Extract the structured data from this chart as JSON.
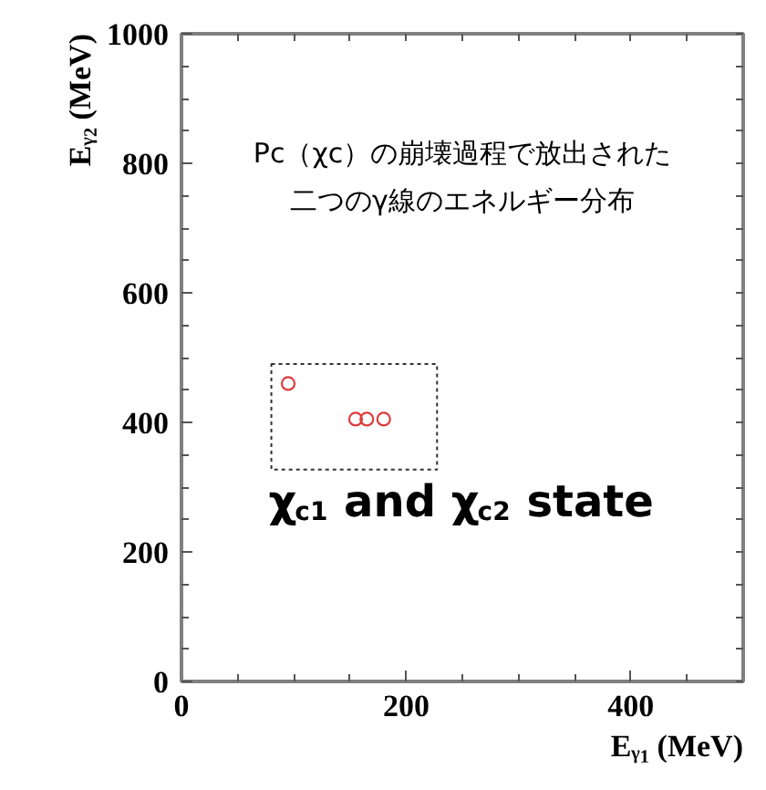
{
  "chart_data": {
    "type": "scatter",
    "xlabel": "Eᵧ₁ (MeV)",
    "ylabel": "Eᵧ₂ (MeV)",
    "annotations": [
      "Pc（χc）の崩壊過程で放出された",
      "二つのγ線のエネルギー分布",
      "χ$_{c1}$ and χ$_{c2}$ state"
    ],
    "x": [
      95,
      155,
      165,
      180
    ],
    "series": [
      {
        "color": "#dd3c3c",
        "values": [
          460,
          405,
          405,
          405
        ]
      }
    ],
    "xlim": [
      0,
      500
    ],
    "ylim": [
      0,
      1000
    ],
    "xticks": [
      0,
      {
        "value": 50,
        "label": null
      },
      {
        "value": 100,
        "label": null
      },
      {
        "value": 150,
        "label": null
      },
      200,
      {
        "value": 250,
        "label": null
      },
      {
        "value": 300,
        "label": null
      },
      {
        "value": 350,
        "label": null
      },
      400,
      {
        "value": 450,
        "label": null
      }
    ],
    "yticks": [
      0,
      {
        "value": 50,
        "label": null
      },
      {
        "value": 100,
        "label": null
      },
      {
        "value": 150,
        "label": null
      },
      200,
      {
        "value": 250,
        "label": null
      },
      {
        "value": 300,
        "label": null
      },
      {
        "value": 350,
        "label": null
      },
      400,
      {
        "value": 450,
        "label": null
      },
      {
        "value": 500,
        "label": null
      },
      {
        "value": 550,
        "label": null
      },
      600,
      {
        "value": 650,
        "label": null
      },
      {
        "value": 700,
        "label": null
      },
      {
        "value": 750,
        "label": null
      },
      800,
      {
        "value": 850,
        "label": null
      },
      {
        "value": 900,
        "label": null
      },
      {
        "value": 950,
        "label": null
      },
      1000
    ],
    "grid": false,
    "marker": "circle"
  }
}
